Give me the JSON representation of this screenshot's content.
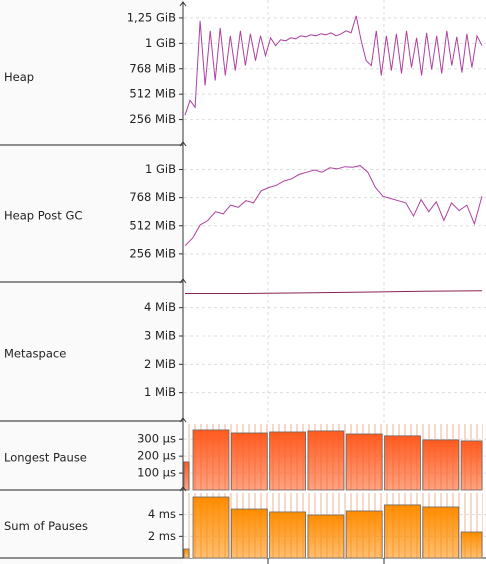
{
  "chart_data": [
    {
      "type": "line",
      "label": "Heap",
      "color": "#b0409f",
      "grid": true,
      "ylim": [
        0,
        1380
      ],
      "yticks": [
        {
          "value": 256,
          "label": "256 MiB"
        },
        {
          "value": 512,
          "label": "512 MiB"
        },
        {
          "value": 768,
          "label": "768 MiB"
        },
        {
          "value": 1024,
          "label": "1 GiB"
        },
        {
          "value": 1280,
          "label": "1,25 GiB"
        }
      ],
      "values": [
        300,
        450,
        380,
        1250,
        600,
        1150,
        650,
        1180,
        700,
        1100,
        750,
        1150,
        800,
        1120,
        850,
        1100,
        900,
        1080,
        1000,
        1060,
        1050,
        1080,
        1070,
        1100,
        1090,
        1110,
        1100,
        1120,
        1110,
        1130,
        1100,
        1120,
        1150,
        1130,
        1300,
        1050,
        850,
        800,
        1150,
        700,
        1100,
        750,
        1120,
        720,
        1150,
        780,
        1080,
        700,
        1130,
        760,
        1100,
        720,
        1150,
        800,
        1090,
        730,
        1120,
        780,
        1100,
        1000
      ]
    },
    {
      "type": "line",
      "label": "Heap Post GC",
      "color": "#b0409f",
      "grid": true,
      "ylim": [
        0,
        1220
      ],
      "yticks": [
        {
          "value": 256,
          "label": "256 MiB"
        },
        {
          "value": 512,
          "label": "512 MiB"
        },
        {
          "value": 768,
          "label": "768 MiB"
        },
        {
          "value": 1024,
          "label": "1 GiB"
        }
      ],
      "values": [
        330,
        400,
        520,
        560,
        640,
        620,
        700,
        680,
        740,
        720,
        830,
        860,
        880,
        920,
        940,
        980,
        1000,
        1020,
        1000,
        1040,
        1030,
        1050,
        1045,
        1060,
        1000,
        860,
        780,
        760,
        740,
        720,
        600,
        750,
        640,
        730,
        560,
        720,
        650,
        700,
        530,
        780
      ]
    },
    {
      "type": "line",
      "label": "Metaspace",
      "color": "#8b2252",
      "grid": true,
      "ylim": [
        0,
        4.8
      ],
      "yticks": [
        {
          "value": 1,
          "label": "1 MiB"
        },
        {
          "value": 2,
          "label": "2 MiB"
        },
        {
          "value": 3,
          "label": "3 MiB"
        },
        {
          "value": 4,
          "label": "4 MiB"
        }
      ],
      "values": [
        4.5,
        4.5,
        4.52,
        4.55,
        4.58,
        4.6
      ]
    },
    {
      "type": "bar",
      "label": "Longest Pause",
      "color": "#ff5a1e",
      "grid": true,
      "ylim": [
        0,
        390
      ],
      "yticks": [
        {
          "value": 100,
          "label": "100 µs"
        },
        {
          "value": 200,
          "label": "200 µs"
        },
        {
          "value": 300,
          "label": "300 µs"
        }
      ],
      "values": [
        166,
        355,
        337,
        343,
        349,
        331,
        320,
        296,
        290
      ]
    },
    {
      "type": "bar",
      "label": "Sum of Pauses",
      "color": "#ff8c00",
      "grid": true,
      "ylim": [
        0,
        6
      ],
      "yticks": [
        {
          "value": 2,
          "label": "2 ms"
        },
        {
          "value": 4,
          "label": "4 ms"
        }
      ],
      "values": [
        0.83,
        5.63,
        4.52,
        4.25,
        3.97,
        4.34,
        4.9,
        4.71,
        2.4
      ]
    }
  ]
}
